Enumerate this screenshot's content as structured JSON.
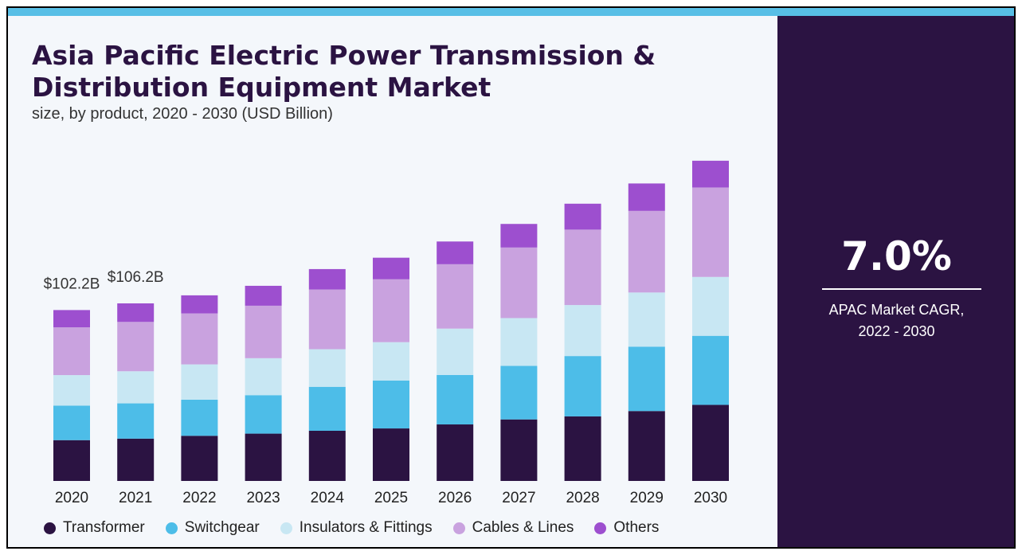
{
  "chart_data": {
    "type": "bar",
    "stacked": true,
    "title": "Asia Pacific Electric Power Transmission & Distribution Equipment Market",
    "subtitle": "size, by product, 2020 - 2030 (USD Billion)",
    "categories": [
      "2020",
      "2021",
      "2022",
      "2023",
      "2024",
      "2025",
      "2026",
      "2027",
      "2028",
      "2029",
      "2030"
    ],
    "series": [
      {
        "name": "Transformer",
        "color": "#2b1342",
        "values": [
          24.4,
          25.3,
          27.0,
          28.3,
          30.0,
          31.4,
          33.8,
          36.8,
          38.6,
          41.8,
          45.5
        ]
      },
      {
        "name": "Switchgear",
        "color": "#4dbde8",
        "values": [
          20.6,
          21.1,
          21.6,
          23.0,
          26.3,
          28.6,
          29.6,
          32.0,
          36.1,
          38.5,
          41.3
        ]
      },
      {
        "name": "Insulators & Fittings",
        "color": "#c8e7f3",
        "values": [
          18.3,
          19.2,
          21.1,
          22.1,
          22.5,
          23.0,
          27.7,
          28.6,
          30.5,
          32.4,
          35.2
        ]
      },
      {
        "name": "Cables & Lines",
        "color": "#c9a2df",
        "values": [
          28.6,
          29.5,
          30.5,
          31.4,
          35.7,
          37.6,
          38.5,
          42.2,
          45.1,
          48.8,
          53.5
        ]
      },
      {
        "name": "Others",
        "color": "#9d4fcf",
        "values": [
          10.3,
          11.1,
          10.8,
          11.9,
          12.2,
          12.9,
          13.6,
          14.1,
          15.5,
          16.4,
          16.0
        ]
      }
    ],
    "data_labels": [
      {
        "category": "2020",
        "text": "$102.2B"
      },
      {
        "category": "2021",
        "text": "$106.2B"
      }
    ],
    "legend": "bottom",
    "grid": false,
    "ylim": [
      0,
      200
    ]
  },
  "side_panel": {
    "cagr_value": "7.0%",
    "cagr_label_line1": "APAC Market CAGR,",
    "cagr_label_line2": "2022 - 2030"
  },
  "colors": {
    "accent_bar": "#58bfe6",
    "panel_background": "#2b1342",
    "chart_background": "#f4f7fb"
  }
}
